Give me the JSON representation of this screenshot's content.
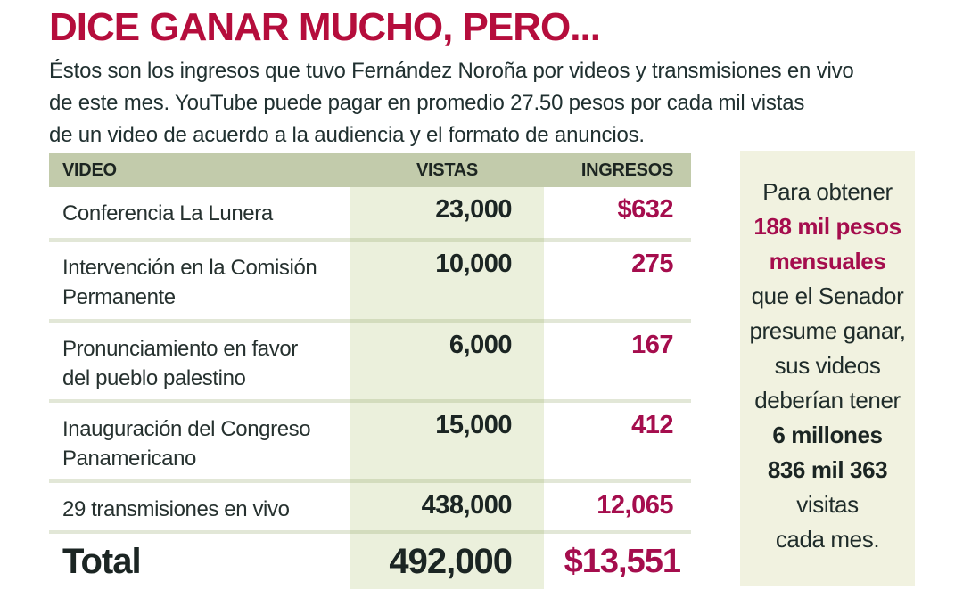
{
  "title": "DICE GANAR MUCHO, PERO...",
  "intro": {
    "line1": "Éstos son los ingresos que tuvo Fernández Noroña por videos y transmisiones en vivo",
    "line2": "de este mes. YouTube puede pagar en promedio 27.50 pesos por cada mil vistas",
    "line3": "de un video de acuerdo a la audiencia y el formato de anuncios."
  },
  "table": {
    "headers": {
      "video": "VIDEO",
      "vistas": "VISTAS",
      "ingresos": "INGRESOS"
    },
    "rows": [
      {
        "video": "Conferencia La Lunera",
        "vistas": "23,000",
        "ingresos": "$632"
      },
      {
        "video": "Intervención en la Comisión\nPermanente",
        "vistas": "10,000",
        "ingresos": "275"
      },
      {
        "video": "Pronunciamiento en favor\ndel pueblo palestino",
        "vistas": "6,000",
        "ingresos": "167"
      },
      {
        "video": "Inauguración del Congreso\nPanamericano",
        "vistas": "15,000",
        "ingresos": "412"
      },
      {
        "video": "29 transmisiones en vivo",
        "vistas": "438,000",
        "ingresos": "12,065"
      }
    ],
    "total": {
      "label": "Total",
      "vistas": "492,000",
      "ingresos": "$13,551"
    }
  },
  "sidebar": {
    "lines": [
      {
        "text": "Para obtener",
        "style": "plain"
      },
      {
        "text": "188 mil pesos",
        "style": "accent"
      },
      {
        "text": "mensuales",
        "style": "accent"
      },
      {
        "text": "que el Senador",
        "style": "plain"
      },
      {
        "text": "presume ganar,",
        "style": "plain"
      },
      {
        "text": "sus videos",
        "style": "plain"
      },
      {
        "text": "deberían tener",
        "style": "plain"
      },
      {
        "text": "6 millones",
        "style": "bold"
      },
      {
        "text": "836 mil 363",
        "style": "bold"
      },
      {
        "text": "visitas",
        "style": "plain"
      },
      {
        "text": "cada mes.",
        "style": "plain"
      }
    ]
  },
  "colors": {
    "title": "#b50d3c",
    "accent": "#a50d4d",
    "header_bar": "#c2cbab",
    "vistas_column_bg": "#ebf0dc",
    "sidebar_bg": "#f1f2e0",
    "dark_text": "#1f2c2a",
    "divider": "#e3e8d2"
  },
  "chart_data": {
    "type": "table",
    "title": "DICE GANAR MUCHO, PERO...",
    "subtitle": "Éstos son los ingresos que tuvo Fernández Noroña por videos y transmisiones en vivo de este mes. YouTube puede pagar en promedio 27.50 pesos por cada mil vistas de un video de acuerdo a la audiencia y el formato de anuncios.",
    "columns": [
      "VIDEO",
      "VISTAS",
      "INGRESOS"
    ],
    "rows": [
      [
        "Conferencia La Lunera",
        23000,
        632
      ],
      [
        "Intervención en la Comisión Permanente",
        10000,
        275
      ],
      [
        "Pronunciamiento en favor del pueblo palestino",
        6000,
        167
      ],
      [
        "Inauguración del Congreso Panamericano",
        15000,
        412
      ],
      [
        "29 transmisiones en vivo",
        438000,
        12065
      ]
    ],
    "total": [
      "Total",
      492000,
      13551
    ],
    "annotation": "Para obtener 188 mil pesos mensuales que el Senador presume ganar, sus videos deberían tener 6 millones 836 mil 363 visitas cada mes.",
    "currency_note": "ingresos en pesos, vistas como conteo"
  }
}
